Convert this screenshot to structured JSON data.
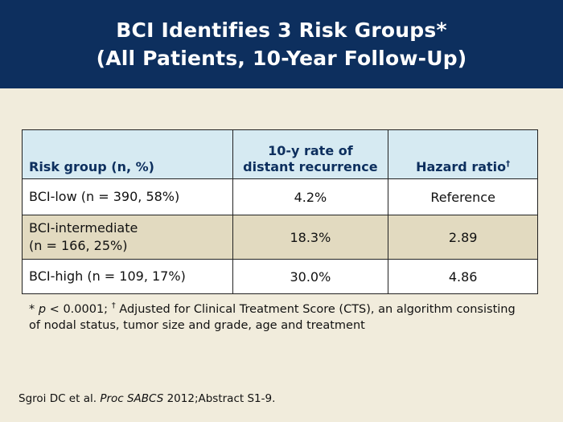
{
  "title": {
    "line1": "BCI Identifies 3 Risk Groups*",
    "line2": "(All Patients, 10-Year Follow-Up)"
  },
  "table": {
    "headers": {
      "risk_group": "Risk group (n, %)",
      "rate_line1": "10-y rate of",
      "rate_line2": "distant recurrence",
      "hazard": "Hazard ratio",
      "hazard_mark": "†"
    },
    "rows": [
      {
        "group": "BCI-low (n = 390, 58%)",
        "group_line2": "",
        "rate": "4.2%",
        "hazard": "Reference"
      },
      {
        "group": "BCI-intermediate",
        "group_line2": "(n = 166, 25%)",
        "rate": "18.3%",
        "hazard": "2.89"
      },
      {
        "group": "BCI-high (n = 109, 17%)",
        "group_line2": "",
        "rate": "30.0%",
        "hazard": "4.86"
      }
    ]
  },
  "footnote": {
    "star": "* ",
    "p": "p",
    "p_value": " < 0.0001; ",
    "dagger": "†",
    "text": " Adjusted for Clinical Treatment Score (CTS), an algorithm consisting of nodal status, tumor size and grade, age and treatment"
  },
  "citation": {
    "authors": "Sgroi DC et al. ",
    "journal": "Proc SABCS",
    "rest": " 2012;Abstract S1-9."
  }
}
